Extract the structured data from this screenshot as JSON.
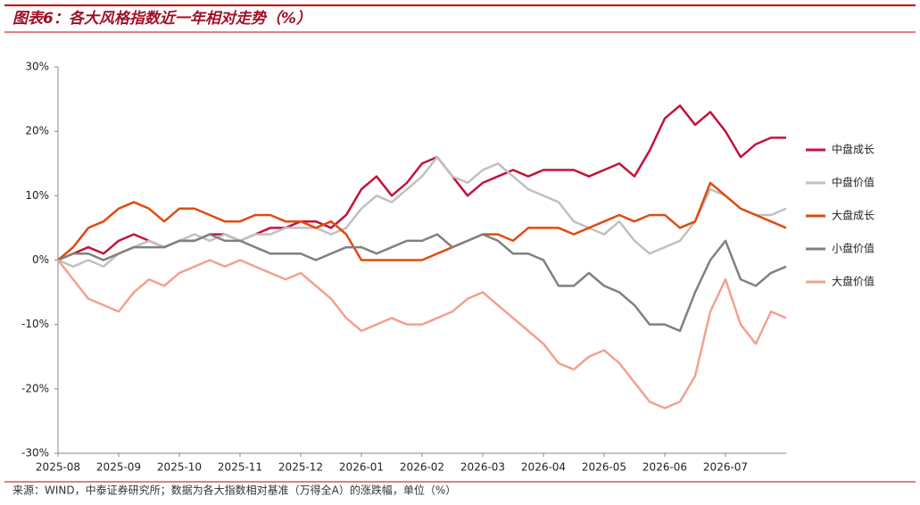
{
  "chart_data": {
    "type": "line",
    "title": "图表6：各大风格指数近一年相对走势（%）",
    "source": "来源：WIND，中泰证券研究所；数据为各大指数相对基准（万得全A）的涨跌幅，单位（%）",
    "categories": [
      "2025-08",
      null,
      null,
      null,
      "2025-09",
      null,
      null,
      null,
      "2025-10",
      null,
      null,
      null,
      "2025-11",
      null,
      null,
      null,
      "2025-12",
      null,
      null,
      null,
      "2026-01",
      null,
      null,
      null,
      "2026-02",
      null,
      null,
      null,
      "2026-03",
      null,
      null,
      null,
      "2026-04",
      null,
      null,
      null,
      "2026-05",
      null,
      null,
      null,
      "2026-06",
      null,
      null,
      null,
      "2026-07",
      null,
      null,
      null,
      null
    ],
    "ylim": [
      -30,
      30
    ],
    "yticks": [
      {
        "value": -30,
        "label": "-30%"
      },
      {
        "value": -20,
        "label": "-20%"
      },
      {
        "value": -10,
        "label": "-10%"
      },
      {
        "value": 0,
        "label": "0%"
      },
      {
        "value": 10,
        "label": "10%"
      },
      {
        "value": 20,
        "label": "20%"
      },
      {
        "value": 30,
        "label": "30%"
      }
    ],
    "legend": "right",
    "series": [
      {
        "name": "中盘成长",
        "color": "#c0143c",
        "values": [
          0,
          1,
          2,
          1,
          3,
          4,
          3,
          2,
          3,
          3,
          4,
          4,
          3,
          4,
          5,
          5,
          6,
          6,
          5,
          7,
          11,
          13,
          10,
          12,
          15,
          16,
          13,
          10,
          12,
          13,
          14,
          13,
          14,
          14,
          14,
          13,
          14,
          15,
          13,
          17,
          22,
          24,
          21,
          23,
          20,
          16,
          18,
          19,
          19
        ]
      },
      {
        "name": "中盘价值",
        "color": "#c0c0c0",
        "values": [
          0,
          -1,
          0,
          -1,
          1,
          2,
          3,
          2,
          3,
          4,
          3,
          4,
          3,
          4,
          4,
          5,
          5,
          5,
          4,
          5,
          8,
          10,
          9,
          11,
          13,
          16,
          13,
          12,
          14,
          15,
          13,
          11,
          10,
          9,
          6,
          5,
          4,
          6,
          3,
          1,
          2,
          3,
          6,
          11,
          10,
          8,
          7,
          7,
          8
        ]
      },
      {
        "name": "大盘成长",
        "color": "#e04a10",
        "values": [
          0,
          2,
          5,
          6,
          8,
          9,
          8,
          6,
          8,
          8,
          7,
          6,
          6,
          7,
          7,
          6,
          6,
          5,
          6,
          4,
          0,
          0,
          0,
          0,
          0,
          1,
          2,
          3,
          4,
          4,
          3,
          5,
          5,
          5,
          4,
          5,
          6,
          7,
          6,
          7,
          7,
          5,
          6,
          12,
          10,
          8,
          7,
          6,
          5
        ]
      },
      {
        "name": "小盘价值",
        "color": "#808080",
        "values": [
          0,
          1,
          1,
          0,
          1,
          2,
          2,
          2,
          3,
          3,
          4,
          3,
          3,
          2,
          1,
          1,
          1,
          0,
          1,
          2,
          2,
          1,
          2,
          3,
          3,
          4,
          2,
          3,
          4,
          3,
          1,
          1,
          0,
          -4,
          -4,
          -2,
          -4,
          -5,
          -7,
          -10,
          -10,
          -11,
          -5,
          0,
          3,
          -3,
          -4,
          -2,
          -1
        ]
      },
      {
        "name": "大盘价值",
        "color": "#f4a090",
        "values": [
          0,
          -3,
          -6,
          -7,
          -8,
          -5,
          -3,
          -4,
          -2,
          -1,
          0,
          -1,
          0,
          -1,
          -2,
          -3,
          -2,
          -4,
          -6,
          -9,
          -11,
          -10,
          -9,
          -10,
          -10,
          -9,
          -8,
          -6,
          -5,
          -7,
          -9,
          -11,
          -13,
          -16,
          -17,
          -15,
          -14,
          -16,
          -19,
          -22,
          -23,
          -22,
          -18,
          -8,
          -3,
          -10,
          -13,
          -8,
          -9
        ]
      }
    ]
  }
}
